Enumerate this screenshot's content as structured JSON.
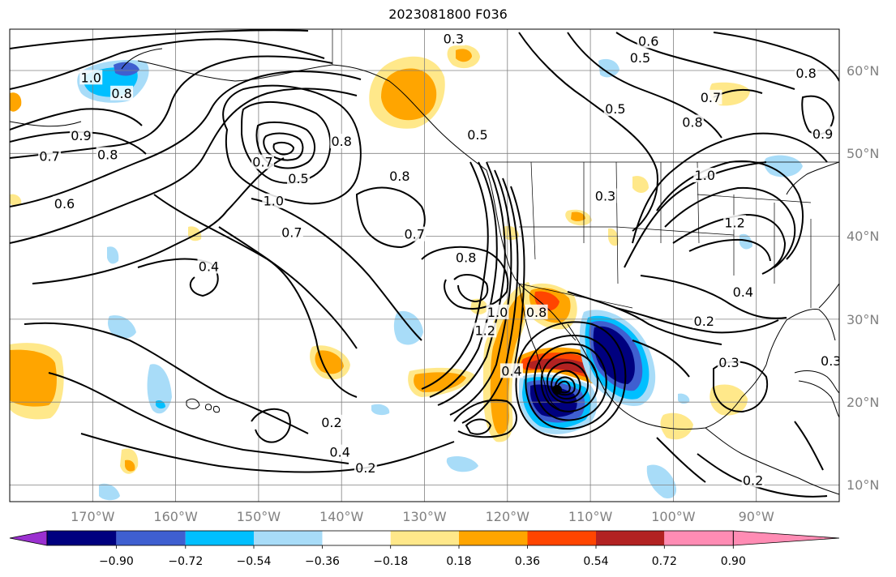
{
  "title": "2023081800 F036",
  "map": {
    "projection": "PlateCarree",
    "lon_range": [
      -180,
      -80
    ],
    "lat_range": [
      8,
      65
    ],
    "lon_labels": [
      "170°W",
      "160°W",
      "150°W",
      "140°W",
      "130°W",
      "120°W",
      "110°W",
      "100°W",
      "90°W"
    ],
    "lat_labels": [
      "10°N",
      "20°N",
      "30°N",
      "40°N",
      "50°N",
      "60°N"
    ],
    "contour_labels": [
      {
        "text": "0.3",
        "lon": -126.5,
        "lat": 63.9
      },
      {
        "text": "0.6",
        "lon": -103.0,
        "lat": 63.6
      },
      {
        "text": "0.5",
        "lon": -104.0,
        "lat": 61.6
      },
      {
        "text": "0.8",
        "lon": -84.0,
        "lat": 59.7
      },
      {
        "text": "0.5",
        "lon": -107.0,
        "lat": 55.4
      },
      {
        "text": "0.7",
        "lon": -95.5,
        "lat": 56.8
      },
      {
        "text": "0.8",
        "lon": -97.7,
        "lat": 53.8
      },
      {
        "text": "0.9",
        "lon": -82.0,
        "lat": 52.4
      },
      {
        "text": "0.5",
        "lon": -123.6,
        "lat": 52.3
      },
      {
        "text": "1.0",
        "lon": -96.2,
        "lat": 47.4
      },
      {
        "text": "1.2",
        "lon": -92.6,
        "lat": 41.7
      },
      {
        "text": "0.3",
        "lon": -108.2,
        "lat": 44.9
      },
      {
        "text": "1.0",
        "lon": -170.2,
        "lat": 59.2
      },
      {
        "text": "0.8",
        "lon": -166.5,
        "lat": 57.3
      },
      {
        "text": "0.9",
        "lon": -171.4,
        "lat": 52.2
      },
      {
        "text": "0.7",
        "lon": -175.2,
        "lat": 49.7
      },
      {
        "text": "0.8",
        "lon": -168.2,
        "lat": 49.9
      },
      {
        "text": "0.8",
        "lon": -140.0,
        "lat": 51.5
      },
      {
        "text": "0.7",
        "lon": -149.5,
        "lat": 49.0
      },
      {
        "text": "0.5",
        "lon": -145.2,
        "lat": 47.0
      },
      {
        "text": "0.8",
        "lon": -133.0,
        "lat": 47.3
      },
      {
        "text": "1.0",
        "lon": -148.2,
        "lat": 44.3
      },
      {
        "text": "0.6",
        "lon": -173.4,
        "lat": 44.0
      },
      {
        "text": "0.7",
        "lon": -131.2,
        "lat": 40.3
      },
      {
        "text": "0.7",
        "lon": -146.0,
        "lat": 40.5
      },
      {
        "text": "0.4",
        "lon": -156.0,
        "lat": 36.4
      },
      {
        "text": "0.8",
        "lon": -125.0,
        "lat": 37.5
      },
      {
        "text": "1.2",
        "lon": -122.7,
        "lat": 28.7
      },
      {
        "text": "1.0",
        "lon": -121.2,
        "lat": 30.9
      },
      {
        "text": "0.8",
        "lon": -116.5,
        "lat": 30.9
      },
      {
        "text": "0.4",
        "lon": -119.5,
        "lat": 23.8
      },
      {
        "text": "0.4",
        "lon": -91.6,
        "lat": 33.3
      },
      {
        "text": "0.2",
        "lon": -96.3,
        "lat": 29.8
      },
      {
        "text": "0.3",
        "lon": -93.3,
        "lat": 24.8
      },
      {
        "text": "0.3",
        "lon": -81.0,
        "lat": 25.0
      },
      {
        "text": "0.2",
        "lon": -141.2,
        "lat": 17.6
      },
      {
        "text": "0.4",
        "lon": -140.2,
        "lat": 14.0
      },
      {
        "text": "0.2",
        "lon": -137.1,
        "lat": 12.1
      },
      {
        "text": "0.2",
        "lon": -90.4,
        "lat": 10.6
      }
    ]
  },
  "colorbar": {
    "extend": "both",
    "tick_labels": [
      "−0.90",
      "−0.72",
      "−0.54",
      "−0.36",
      "−0.18",
      "0.18",
      "0.36",
      "0.54",
      "0.72",
      "0.90"
    ],
    "levels": [
      -0.9,
      -0.72,
      -0.54,
      -0.36,
      -0.18,
      0.18,
      0.36,
      0.54,
      0.72,
      0.9
    ],
    "colors": [
      "#9b30d0",
      "#00007f",
      "#3f5fd0",
      "#00bfff",
      "#a8dcf8",
      "#ffffff",
      "#ffe88a",
      "#ffa500",
      "#ff4500",
      "#b22222",
      "#ff8cb4"
    ]
  }
}
